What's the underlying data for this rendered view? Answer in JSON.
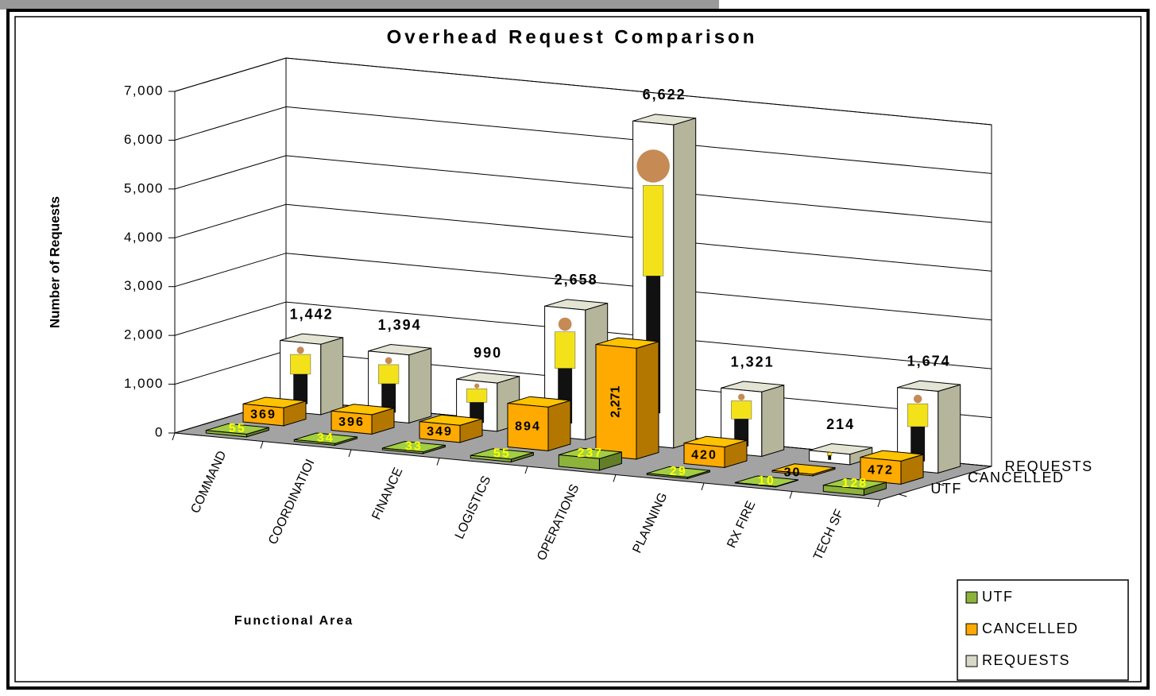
{
  "chart_data": {
    "type": "bar3d",
    "title": "Overhead Request Comparison",
    "x_label": "Functional Area",
    "y_label": "Number of Requests",
    "categories": [
      "COMMAND",
      "COORDINATIOI",
      "FINANCE",
      "LOGISTICS",
      "OPERATIONS",
      "PLANNING",
      "RX FIRE",
      "TECH SF"
    ],
    "series": [
      {
        "name": "UTF",
        "color": "#8db33a",
        "values": [
          55,
          34,
          33,
          55,
          237,
          29,
          10,
          128
        ]
      },
      {
        "name": "CANCELLED",
        "color": "#ffaa00",
        "values": [
          369,
          396,
          349,
          894,
          2271,
          420,
          30,
          472
        ],
        "value_labels": [
          "369",
          "396",
          "349",
          "894",
          "2,271",
          "420",
          "30",
          "472"
        ]
      },
      {
        "name": "REQUESTS",
        "color": "#ffffff",
        "values": [
          1442,
          1394,
          990,
          2658,
          6622,
          1321,
          214,
          1674
        ],
        "value_labels": [
          "1,442",
          "1,394",
          "990",
          "2,658",
          "6,622",
          "1,321",
          "214",
          "1,674"
        ]
      }
    ],
    "ylim": [
      0,
      7000
    ],
    "yticks": [
      0,
      {
        "value": 1000,
        "label": "1,000"
      },
      {
        "value": 2000,
        "label": "2,000"
      },
      {
        "value": 3000,
        "label": "3,000"
      },
      {
        "value": 4000,
        "label": "4,000"
      },
      {
        "value": 5000,
        "label": "5,000"
      },
      {
        "value": 6000,
        "label": "6,000"
      },
      {
        "value": 7000,
        "label": "7,000"
      }
    ],
    "grid": true,
    "legend": "bottom-right"
  }
}
